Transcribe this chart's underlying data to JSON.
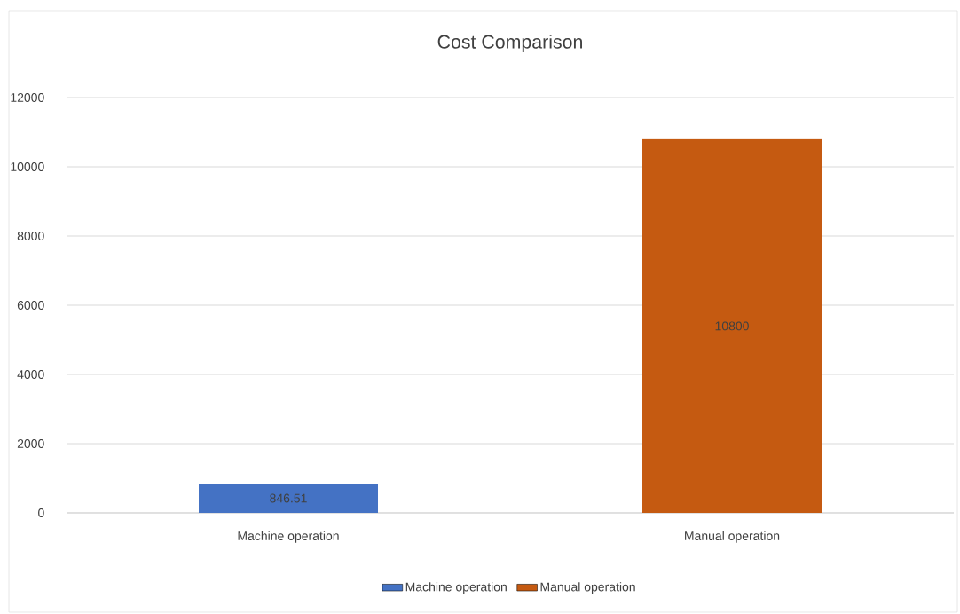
{
  "chart_data": {
    "type": "bar",
    "title": "Cost Comparison",
    "categories": [
      "Machine operation",
      "Manual operation"
    ],
    "series": [
      {
        "name": "Machine operation",
        "color": "#4472c4",
        "values": [
          846.51,
          null
        ]
      },
      {
        "name": "Manual operation",
        "color": "#c55a11",
        "values": [
          null,
          10800
        ]
      }
    ],
    "data_labels": true,
    "legend": "bottom",
    "grid": "y",
    "ylim": [
      0,
      12000
    ],
    "yticks": [
      0,
      2000,
      4000,
      6000,
      8000,
      10000,
      12000
    ]
  }
}
